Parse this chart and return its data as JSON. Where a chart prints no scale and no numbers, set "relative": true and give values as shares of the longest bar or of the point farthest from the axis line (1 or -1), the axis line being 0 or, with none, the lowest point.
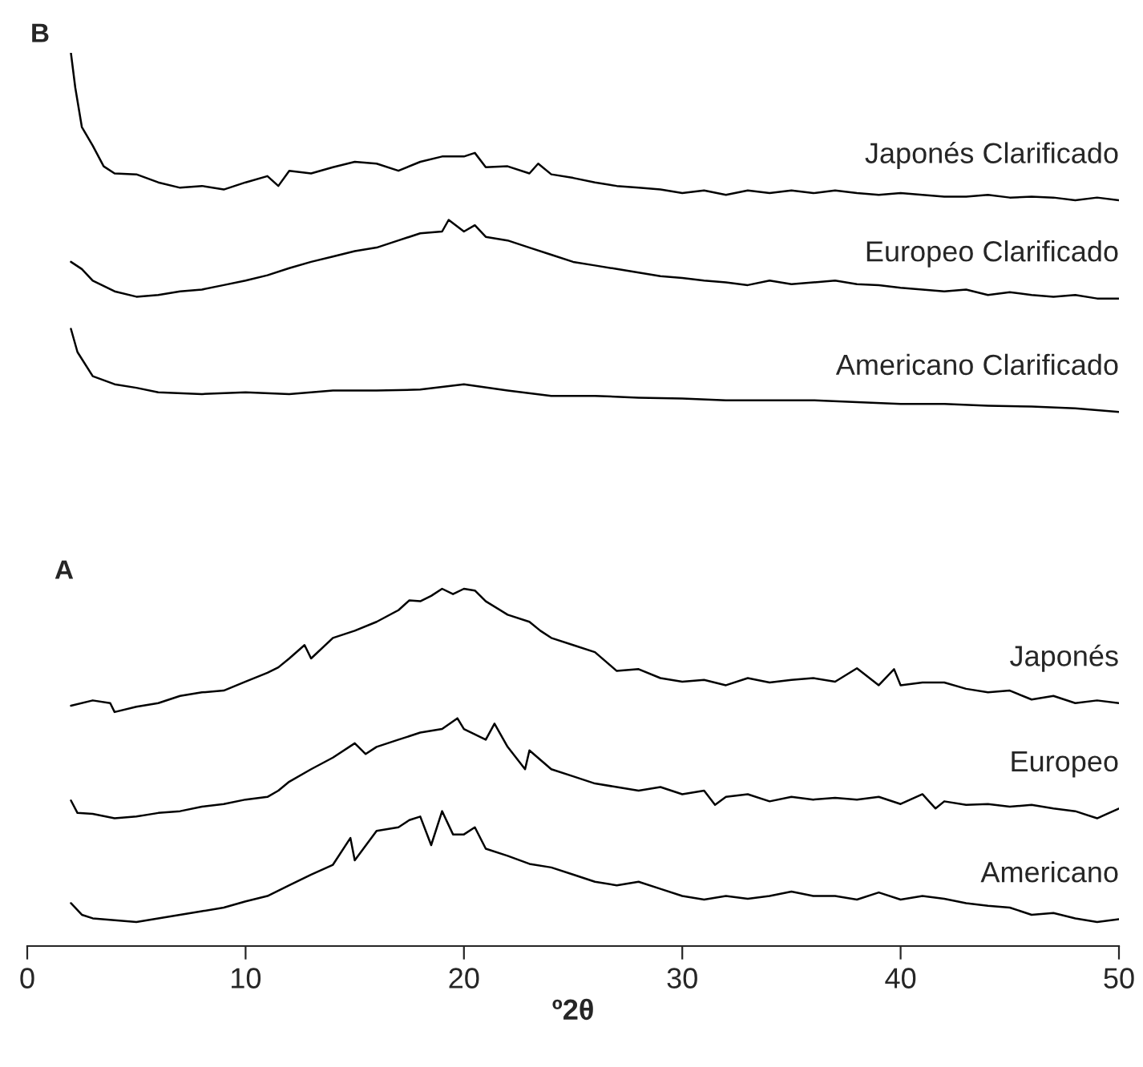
{
  "chart_data": {
    "type": "line",
    "relative": true,
    "xlabel": "º2θ",
    "xlim": [
      0,
      50
    ],
    "xticks": [
      0,
      10,
      20,
      30,
      40,
      50
    ],
    "annotations": [
      "B",
      "A"
    ],
    "series": [
      {
        "name": "Japonés Clarificado",
        "color": "#000000",
        "x": [
          2,
          2.2,
          2.5,
          3,
          3.5,
          4,
          5,
          6,
          7,
          8,
          9,
          10,
          11,
          11.5,
          12,
          13,
          14,
          15,
          16,
          17,
          18,
          19,
          20,
          20.5,
          21,
          22,
          23,
          23.4,
          24,
          25,
          26,
          27,
          28,
          29,
          30,
          31,
          32,
          33,
          34,
          35,
          36,
          37,
          38,
          39,
          40,
          41,
          42,
          43,
          44,
          45,
          46,
          47,
          48,
          49,
          50
        ],
        "values": [
          1,
          0.961,
          0.917,
          0.896,
          0.873,
          0.865,
          0.864,
          0.855,
          0.849,
          0.851,
          0.847,
          0.855,
          0.862,
          0.851,
          0.868,
          0.865,
          0.872,
          0.878,
          0.876,
          0.868,
          0.878,
          0.884,
          0.884,
          0.888,
          0.872,
          0.873,
          0.865,
          0.876,
          0.864,
          0.86,
          0.855,
          0.851,
          0.849,
          0.847,
          0.843,
          0.846,
          0.841,
          0.846,
          0.843,
          0.846,
          0.843,
          0.846,
          0.843,
          0.841,
          0.843,
          0.841,
          0.839,
          0.839,
          0.841,
          0.838,
          0.839,
          0.838,
          0.835,
          0.838,
          0.835
        ]
      },
      {
        "name": "Europeo Clarificado",
        "color": "#000000",
        "x": [
          2,
          2.5,
          3,
          4,
          5,
          6,
          7,
          8,
          9,
          10,
          11,
          12,
          13,
          14,
          15,
          16,
          17,
          18,
          19,
          19.3,
          20,
          20.5,
          21,
          22,
          23,
          24,
          25,
          26,
          27,
          28,
          29,
          30,
          31,
          32,
          33,
          34,
          35,
          36,
          37,
          38,
          39,
          40,
          41,
          42,
          43,
          44,
          45,
          46,
          47,
          48,
          49,
          50
        ],
        "values": [
          0.766,
          0.758,
          0.745,
          0.733,
          0.727,
          0.729,
          0.733,
          0.735,
          0.74,
          0.745,
          0.751,
          0.759,
          0.766,
          0.772,
          0.778,
          0.782,
          0.79,
          0.798,
          0.8,
          0.813,
          0.8,
          0.807,
          0.794,
          0.79,
          0.782,
          0.774,
          0.766,
          0.762,
          0.758,
          0.754,
          0.75,
          0.748,
          0.745,
          0.743,
          0.74,
          0.745,
          0.741,
          0.743,
          0.745,
          0.741,
          0.74,
          0.737,
          0.735,
          0.733,
          0.735,
          0.729,
          0.732,
          0.729,
          0.727,
          0.729,
          0.725,
          0.725
        ]
      },
      {
        "name": "Americano Clarificado",
        "color": "#000000",
        "x": [
          2,
          2.3,
          3,
          4,
          5,
          6,
          8,
          10,
          12,
          14,
          16,
          18,
          20,
          22,
          24,
          26,
          28,
          30,
          32,
          34,
          36,
          38,
          40,
          42,
          44,
          46,
          48,
          50
        ],
        "values": [
          0.691,
          0.665,
          0.638,
          0.629,
          0.625,
          0.62,
          0.618,
          0.62,
          0.618,
          0.622,
          0.622,
          0.623,
          0.629,
          0.622,
          0.616,
          0.616,
          0.614,
          0.613,
          0.611,
          0.611,
          0.611,
          0.609,
          0.607,
          0.607,
          0.605,
          0.604,
          0.602,
          0.598
        ]
      },
      {
        "name": "Japonés",
        "color": "#000000",
        "x": [
          2,
          3,
          3.8,
          4,
          5,
          6,
          7,
          8,
          9,
          10,
          11,
          11.5,
          12,
          12.7,
          13,
          14,
          15,
          16,
          17,
          17.5,
          18,
          18.5,
          19,
          19.5,
          20,
          20.5,
          21,
          22,
          23,
          23.5,
          24,
          25,
          26,
          27,
          28,
          29,
          30,
          31,
          32,
          33,
          34,
          35,
          36,
          37,
          38,
          39,
          39.7,
          40,
          41,
          42,
          43,
          44,
          45,
          46,
          47,
          48,
          49,
          50
        ],
        "values": [
          0.269,
          0.275,
          0.272,
          0.262,
          0.268,
          0.272,
          0.28,
          0.284,
          0.286,
          0.296,
          0.306,
          0.312,
          0.322,
          0.337,
          0.322,
          0.345,
          0.353,
          0.363,
          0.376,
          0.387,
          0.386,
          0.392,
          0.4,
          0.394,
          0.4,
          0.398,
          0.386,
          0.371,
          0.363,
          0.353,
          0.345,
          0.337,
          0.329,
          0.308,
          0.31,
          0.3,
          0.296,
          0.298,
          0.292,
          0.3,
          0.295,
          0.298,
          0.3,
          0.296,
          0.311,
          0.292,
          0.31,
          0.292,
          0.295,
          0.295,
          0.288,
          0.284,
          0.286,
          0.276,
          0.28,
          0.272,
          0.275,
          0.272
        ]
      },
      {
        "name": "Europeo",
        "color": "#000000",
        "x": [
          2,
          2.3,
          3,
          4,
          5,
          6,
          7,
          8,
          9,
          10,
          11,
          11.5,
          12,
          13,
          14,
          15,
          15.5,
          16,
          17,
          18,
          19,
          19.7,
          20,
          21,
          21.4,
          22,
          22.8,
          23,
          24,
          25,
          26,
          27,
          28,
          29,
          30,
          31,
          31.5,
          32,
          33,
          34,
          35,
          36,
          37,
          38,
          39,
          40,
          41,
          41.6,
          42,
          43,
          44,
          45,
          46,
          47,
          48,
          49,
          50
        ],
        "values": [
          0.163,
          0.149,
          0.148,
          0.143,
          0.145,
          0.149,
          0.151,
          0.156,
          0.159,
          0.164,
          0.167,
          0.174,
          0.184,
          0.198,
          0.211,
          0.227,
          0.215,
          0.223,
          0.231,
          0.239,
          0.243,
          0.255,
          0.243,
          0.231,
          0.249,
          0.223,
          0.198,
          0.219,
          0.198,
          0.19,
          0.182,
          0.178,
          0.174,
          0.178,
          0.17,
          0.174,
          0.158,
          0.167,
          0.17,
          0.162,
          0.167,
          0.164,
          0.166,
          0.164,
          0.167,
          0.159,
          0.17,
          0.154,
          0.162,
          0.158,
          0.159,
          0.156,
          0.158,
          0.154,
          0.151,
          0.143,
          0.154
        ]
      },
      {
        "name": "Americano",
        "color": "#000000",
        "x": [
          2,
          2.5,
          3,
          4,
          5,
          6,
          7,
          8,
          9,
          10,
          11,
          12,
          13,
          14,
          14.8,
          15,
          16,
          17,
          17.5,
          18,
          18.5,
          19,
          19.5,
          20,
          20.5,
          21,
          22,
          23,
          24,
          25,
          26,
          27,
          28,
          29,
          30,
          31,
          32,
          33,
          34,
          35,
          36,
          37,
          38,
          39,
          40,
          41,
          42,
          43,
          44,
          45,
          46,
          47,
          48,
          49,
          50
        ],
        "values": [
          0.048,
          0.035,
          0.031,
          0.029,
          0.027,
          0.031,
          0.035,
          0.039,
          0.043,
          0.05,
          0.056,
          0.068,
          0.08,
          0.091,
          0.121,
          0.096,
          0.129,
          0.133,
          0.141,
          0.145,
          0.113,
          0.151,
          0.125,
          0.125,
          0.133,
          0.109,
          0.101,
          0.092,
          0.088,
          0.08,
          0.072,
          0.068,
          0.072,
          0.064,
          0.056,
          0.052,
          0.056,
          0.053,
          0.056,
          0.061,
          0.056,
          0.056,
          0.052,
          0.06,
          0.052,
          0.056,
          0.053,
          0.048,
          0.045,
          0.043,
          0.035,
          0.037,
          0.031,
          0.027,
          0.03
        ]
      }
    ]
  }
}
